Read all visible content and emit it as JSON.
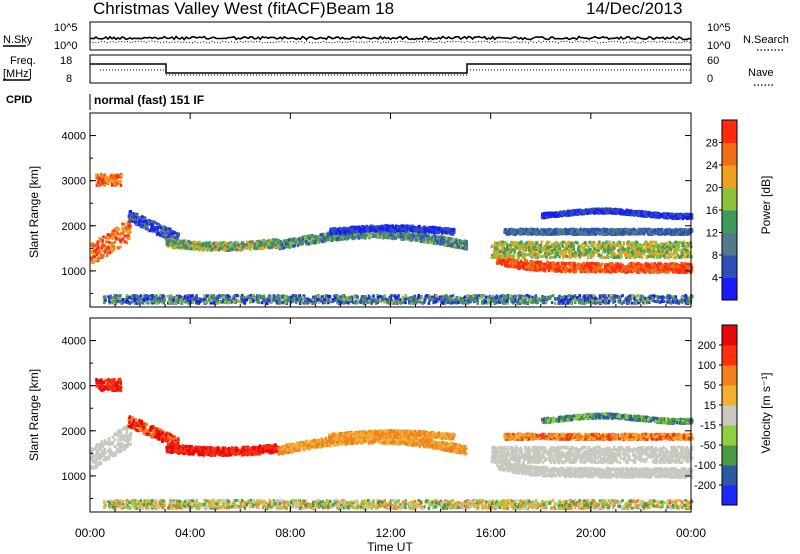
{
  "header": {
    "title": "Christmas Valley West (fitACF)",
    "beam": "Beam 18",
    "date": "14/Dec/2013"
  },
  "top_panels": {
    "nsky_label": "N.Sky",
    "nsky_ticks": [
      "10^5",
      "10^0"
    ],
    "nsearch_label": "N.Search",
    "nsearch_ticks": [
      "10^5",
      "10^0"
    ],
    "freq_label_line1": "Freq.",
    "freq_label_line2": "[MHz]",
    "freq_ticks": [
      "18",
      "8"
    ],
    "nave_label": "Nave",
    "nave_ticks": [
      "60",
      "0"
    ],
    "cpid_label": "CPID",
    "cpid_value": "normal (fast) 151 IF"
  },
  "chart_data": [
    {
      "type": "heatmap",
      "name": "power",
      "ylabel": "Slant Range [km]",
      "yticks": [
        1000,
        2000,
        3000,
        4000
      ],
      "ylim": [
        200,
        4500
      ],
      "xlim": [
        0,
        24
      ],
      "colorbar": {
        "label": "Power [dB]",
        "ticks": [
          "4",
          "8",
          "12",
          "16",
          "20",
          "24",
          "28"
        ],
        "colors": [
          "#1a1aff",
          "#2d4fb8",
          "#4f7a8a",
          "#3e9b5a",
          "#8fc03b",
          "#f0a020",
          "#f07018",
          "#ff2a10"
        ]
      }
    },
    {
      "type": "heatmap",
      "name": "velocity",
      "ylabel": "Slant Range [km]",
      "yticks": [
        1000,
        2000,
        3000,
        4000
      ],
      "ylim": [
        200,
        4500
      ],
      "xlim": [
        0,
        24
      ],
      "colorbar": {
        "label": "Velocity [m s⁻¹]",
        "ticks": [
          "200",
          "100",
          "50",
          "15",
          "-15",
          "-50",
          "-100",
          "-200"
        ],
        "colors": [
          "#1a2aff",
          "#2b5aa0",
          "#4a9a48",
          "#8fd040",
          "#c8c8c0",
          "#f0b030",
          "#f08020",
          "#ff3010",
          "#e80808"
        ]
      }
    }
  ],
  "xaxis": {
    "label": "Time UT",
    "ticks": [
      "00:00",
      "04:00",
      "08:00",
      "12:00",
      "16:00",
      "20:00",
      "00:00"
    ]
  }
}
